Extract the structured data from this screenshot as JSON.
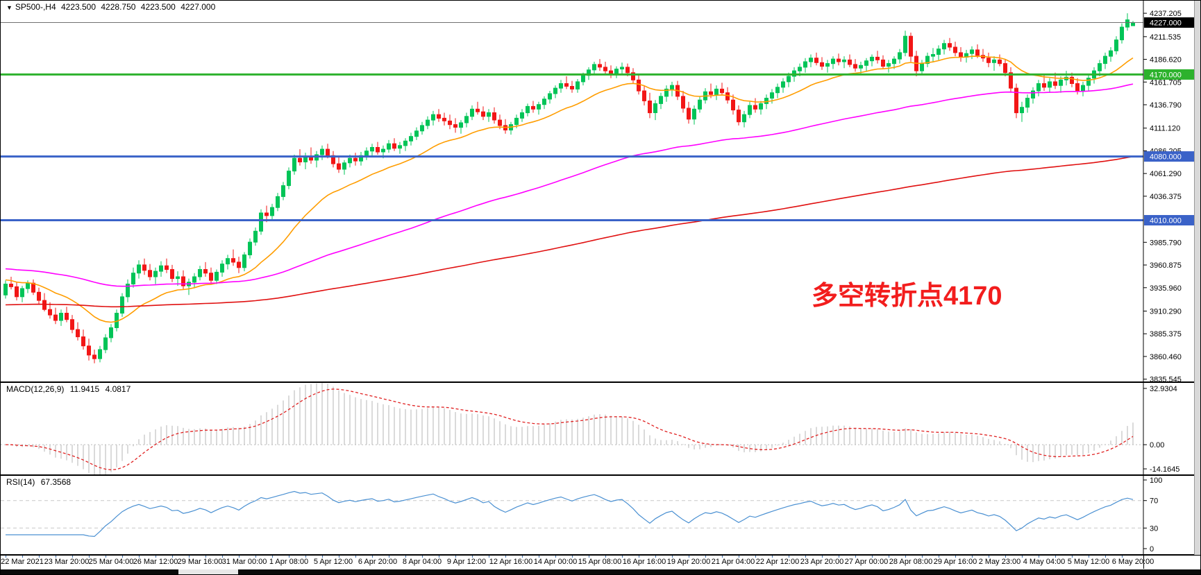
{
  "header": {
    "symbol_tf": "SP500-,H4",
    "open": "4223.500",
    "high": "4228.750",
    "low": "4223.500",
    "close": "4227.000",
    "collapse_icon": "triangle-down"
  },
  "annotation": {
    "text": "多空转折点4170",
    "color": "#f21d1d"
  },
  "colors": {
    "up": "#00c457",
    "down": "#f21616",
    "current_line": "#707070",
    "badge_current_bg": "#000000",
    "hline_green": "#2db22d",
    "hline_blue": "#3a62c8",
    "macd_hist": "#b4b4b4",
    "macd_signal": "#e02020",
    "rsi_line": "#4a90d2",
    "level_dash": "#c8c8c8"
  },
  "chart_data": {
    "type": "candlestick",
    "title": "SP500-,H4",
    "timeframe": "H4",
    "grid": false,
    "price_range": {
      "top": 4251,
      "bottom": 3833
    },
    "y_ticks": [
      "4237.205",
      "4211.535",
      "4186.620",
      "4161.705",
      "4136.790",
      "4111.120",
      "4086.205",
      "4061.290",
      "4036.375",
      "3985.790",
      "3960.875",
      "3935.960",
      "3910.290",
      "3885.375",
      "3860.460",
      "3835.545"
    ],
    "x_labels": [
      "22 Mar 2021",
      "23 Mar 20:00",
      "25 Mar 04:00",
      "26 Mar 12:00",
      "29 Mar 16:00",
      "31 Mar 00:00",
      "1 Apr 08:00",
      "5 Apr 12:00",
      "6 Apr 20:00",
      "8 Apr 04:00",
      "9 Apr 12:00",
      "12 Apr 16:00",
      "14 Apr 00:00",
      "15 Apr 08:00",
      "16 Apr 16:00",
      "19 Apr 20:00",
      "21 Apr 04:00",
      "22 Apr 12:00",
      "23 Apr 20:00",
      "27 Apr 00:00",
      "28 Apr 08:00",
      "29 Apr 16:00",
      "2 May 23:00",
      "4 May 04:00",
      "5 May 12:00",
      "6 May 20:00"
    ],
    "bars_per_label": 8,
    "first_label_bar": 3,
    "current_price": {
      "value": 4227.0,
      "label": "4227.000"
    },
    "hlines": [
      {
        "value": 4170,
        "label": "4170.000",
        "color": "#2db22d"
      },
      {
        "value": 4080,
        "label": "4080.000",
        "color": "#3a62c8"
      },
      {
        "value": 4010,
        "label": "4010.000",
        "color": "#3a62c8"
      }
    ],
    "moving_averages": [
      {
        "period": 20,
        "color": "#ff9d00",
        "seed": 3945
      },
      {
        "period": 100,
        "color": "#ff00ff",
        "seed": 3957
      },
      {
        "period": 280,
        "color": "#e01010",
        "seed": 3917
      }
    ],
    "macd": {
      "label": "MACD(12,26,9)",
      "value_main": "11.9415",
      "value_signal": "4.0817",
      "fast": 12,
      "slow": 26,
      "signal": 9,
      "axis_max": 32.9304,
      "axis_min": -14.1645,
      "axis_labels": [
        "32.9304",
        "0.00",
        "-14.1645"
      ]
    },
    "rsi": {
      "label": "RSI(14)",
      "value": "67.3568",
      "period": 14,
      "levels": [
        100,
        70,
        30,
        0
      ],
      "overbought": 70,
      "oversold": 30
    },
    "candles": [
      [
        3928,
        3944,
        3924,
        3940
      ],
      [
        3940,
        3948,
        3934,
        3937
      ],
      [
        3937,
        3942,
        3922,
        3926
      ],
      [
        3926,
        3938,
        3920,
        3935
      ],
      [
        3935,
        3944,
        3930,
        3941
      ],
      [
        3941,
        3945,
        3928,
        3931
      ],
      [
        3931,
        3936,
        3918,
        3922
      ],
      [
        3922,
        3930,
        3910,
        3912
      ],
      [
        3912,
        3920,
        3902,
        3906
      ],
      [
        3906,
        3914,
        3896,
        3900
      ],
      [
        3900,
        3912,
        3894,
        3908
      ],
      [
        3908,
        3915,
        3898,
        3901
      ],
      [
        3901,
        3906,
        3886,
        3890
      ],
      [
        3890,
        3898,
        3878,
        3882
      ],
      [
        3882,
        3890,
        3868,
        3872
      ],
      [
        3872,
        3880,
        3856,
        3862
      ],
      [
        3862,
        3868,
        3853,
        3858
      ],
      [
        3858,
        3872,
        3854,
        3868
      ],
      [
        3868,
        3885,
        3864,
        3881
      ],
      [
        3881,
        3896,
        3876,
        3892
      ],
      [
        3892,
        3912,
        3888,
        3908
      ],
      [
        3908,
        3930,
        3904,
        3926
      ],
      [
        3926,
        3945,
        3920,
        3940
      ],
      [
        3940,
        3958,
        3936,
        3952
      ],
      [
        3952,
        3966,
        3946,
        3961
      ],
      [
        3961,
        3968,
        3950,
        3955
      ],
      [
        3955,
        3962,
        3944,
        3948
      ],
      [
        3948,
        3958,
        3940,
        3954
      ],
      [
        3954,
        3965,
        3948,
        3960
      ],
      [
        3960,
        3968,
        3952,
        3956
      ],
      [
        3956,
        3961,
        3942,
        3946
      ],
      [
        3946,
        3954,
        3938,
        3948
      ],
      [
        3948,
        3955,
        3934,
        3938
      ],
      [
        3938,
        3946,
        3928,
        3942
      ],
      [
        3942,
        3952,
        3936,
        3948
      ],
      [
        3948,
        3960,
        3944,
        3956
      ],
      [
        3956,
        3964,
        3948,
        3952
      ],
      [
        3952,
        3958,
        3940,
        3944
      ],
      [
        3944,
        3956,
        3940,
        3953
      ],
      [
        3953,
        3966,
        3948,
        3962
      ],
      [
        3962,
        3972,
        3956,
        3968
      ],
      [
        3968,
        3978,
        3960,
        3964
      ],
      [
        3964,
        3970,
        3952,
        3958
      ],
      [
        3958,
        3975,
        3954,
        3972
      ],
      [
        3972,
        3990,
        3968,
        3986
      ],
      [
        3986,
        4002,
        3982,
        3998
      ],
      [
        3998,
        4022,
        3994,
        4018
      ],
      [
        4018,
        4026,
        4008,
        4015
      ],
      [
        4015,
        4028,
        4010,
        4024
      ],
      [
        4024,
        4040,
        4020,
        4036
      ],
      [
        4036,
        4052,
        4032,
        4048
      ],
      [
        4048,
        4068,
        4044,
        4064
      ],
      [
        4064,
        4082,
        4060,
        4078
      ],
      [
        4078,
        4088,
        4070,
        4074
      ],
      [
        4074,
        4084,
        4066,
        4080
      ],
      [
        4080,
        4090,
        4072,
        4076
      ],
      [
        4076,
        4086,
        4068,
        4082
      ],
      [
        4082,
        4092,
        4076,
        4088
      ],
      [
        4088,
        4094,
        4078,
        4081
      ],
      [
        4081,
        4086,
        4068,
        4072
      ],
      [
        4072,
        4080,
        4062,
        4066
      ],
      [
        4066,
        4076,
        4060,
        4073
      ],
      [
        4073,
        4082,
        4068,
        4078
      ],
      [
        4078,
        4084,
        4070,
        4075
      ],
      [
        4075,
        4085,
        4070,
        4081
      ],
      [
        4081,
        4090,
        4076,
        4086
      ],
      [
        4086,
        4094,
        4080,
        4090
      ],
      [
        4090,
        4096,
        4082,
        4085
      ],
      [
        4085,
        4092,
        4078,
        4088
      ],
      [
        4088,
        4098,
        4084,
        4094
      ],
      [
        4094,
        4100,
        4086,
        4089
      ],
      [
        4089,
        4096,
        4083,
        4092
      ],
      [
        4092,
        4100,
        4086,
        4097
      ],
      [
        4097,
        4106,
        4092,
        4102
      ],
      [
        4102,
        4112,
        4098,
        4108
      ],
      [
        4108,
        4118,
        4104,
        4114
      ],
      [
        4114,
        4124,
        4110,
        4120
      ],
      [
        4120,
        4130,
        4114,
        4126
      ],
      [
        4126,
        4132,
        4118,
        4122
      ],
      [
        4122,
        4128,
        4114,
        4119
      ],
      [
        4119,
        4126,
        4110,
        4115
      ],
      [
        4115,
        4122,
        4106,
        4112
      ],
      [
        4112,
        4120,
        4105,
        4117
      ],
      [
        4117,
        4128,
        4112,
        4124
      ],
      [
        4124,
        4136,
        4120,
        4132
      ],
      [
        4132,
        4140,
        4126,
        4129
      ],
      [
        4129,
        4135,
        4120,
        4124
      ],
      [
        4124,
        4132,
        4118,
        4128
      ],
      [
        4128,
        4134,
        4116,
        4120
      ],
      [
        4120,
        4126,
        4110,
        4114
      ],
      [
        4114,
        4121,
        4105,
        4109
      ],
      [
        4109,
        4118,
        4104,
        4115
      ],
      [
        4115,
        4126,
        4111,
        4122
      ],
      [
        4122,
        4132,
        4118,
        4128
      ],
      [
        4128,
        4138,
        4124,
        4135
      ],
      [
        4135,
        4141,
        4128,
        4132
      ],
      [
        4132,
        4140,
        4126,
        4137
      ],
      [
        4137,
        4146,
        4132,
        4143
      ],
      [
        4143,
        4152,
        4138,
        4149
      ],
      [
        4149,
        4158,
        4144,
        4155
      ],
      [
        4155,
        4164,
        4150,
        4160
      ],
      [
        4160,
        4168,
        4154,
        4157
      ],
      [
        4157,
        4163,
        4150,
        4154
      ],
      [
        4154,
        4165,
        4150,
        4162
      ],
      [
        4162,
        4172,
        4158,
        4169
      ],
      [
        4169,
        4178,
        4164,
        4175
      ],
      [
        4175,
        4184,
        4170,
        4181
      ],
      [
        4181,
        4187,
        4174,
        4178
      ],
      [
        4178,
        4184,
        4170,
        4174
      ],
      [
        4174,
        4180,
        4166,
        4171
      ],
      [
        4171,
        4179,
        4166,
        4176
      ],
      [
        4176,
        4183,
        4170,
        4178
      ],
      [
        4178,
        4182,
        4168,
        4172
      ],
      [
        4172,
        4177,
        4160,
        4164
      ],
      [
        4164,
        4170,
        4148,
        4152
      ],
      [
        4152,
        4158,
        4136,
        4141
      ],
      [
        4141,
        4150,
        4122,
        4128
      ],
      [
        4128,
        4142,
        4120,
        4138
      ],
      [
        4138,
        4150,
        4132,
        4146
      ],
      [
        4146,
        4158,
        4140,
        4154
      ],
      [
        4154,
        4162,
        4146,
        4158
      ],
      [
        4158,
        4163,
        4142,
        4146
      ],
      [
        4146,
        4152,
        4128,
        4133
      ],
      [
        4133,
        4140,
        4116,
        4121
      ],
      [
        4121,
        4136,
        4115,
        4132
      ],
      [
        4132,
        4146,
        4128,
        4142
      ],
      [
        4142,
        4155,
        4138,
        4151
      ],
      [
        4151,
        4160,
        4144,
        4148
      ],
      [
        4148,
        4158,
        4142,
        4154
      ],
      [
        4154,
        4161,
        4147,
        4150
      ],
      [
        4150,
        4156,
        4138,
        4142
      ],
      [
        4142,
        4148,
        4126,
        4131
      ],
      [
        4131,
        4136,
        4114,
        4118
      ],
      [
        4118,
        4130,
        4112,
        4126
      ],
      [
        4126,
        4140,
        4122,
        4136
      ],
      [
        4136,
        4144,
        4128,
        4132
      ],
      [
        4132,
        4141,
        4126,
        4138
      ],
      [
        4138,
        4148,
        4132,
        4144
      ],
      [
        4144,
        4154,
        4138,
        4150
      ],
      [
        4150,
        4160,
        4144,
        4156
      ],
      [
        4156,
        4166,
        4150,
        4162
      ],
      [
        4162,
        4172,
        4156,
        4168
      ],
      [
        4168,
        4178,
        4162,
        4174
      ],
      [
        4174,
        4182,
        4168,
        4178
      ],
      [
        4178,
        4188,
        4172,
        4184
      ],
      [
        4184,
        4192,
        4178,
        4188
      ],
      [
        4188,
        4194,
        4180,
        4183
      ],
      [
        4183,
        4189,
        4175,
        4179
      ],
      [
        4179,
        4186,
        4172,
        4182
      ],
      [
        4182,
        4190,
        4176,
        4187
      ],
      [
        4187,
        4193,
        4180,
        4184
      ],
      [
        4184,
        4190,
        4177,
        4186
      ],
      [
        4186,
        4192,
        4178,
        4181
      ],
      [
        4181,
        4187,
        4173,
        4177
      ],
      [
        4177,
        4184,
        4170,
        4180
      ],
      [
        4180,
        4188,
        4174,
        4185
      ],
      [
        4185,
        4192,
        4179,
        4189
      ],
      [
        4189,
        4196,
        4182,
        4186
      ],
      [
        4186,
        4191,
        4176,
        4179
      ],
      [
        4179,
        4186,
        4172,
        4182
      ],
      [
        4182,
        4190,
        4176,
        4187
      ],
      [
        4187,
        4198,
        4182,
        4194
      ],
      [
        4194,
        4218,
        4190,
        4212
      ],
      [
        4212,
        4216,
        4184,
        4190
      ],
      [
        4190,
        4196,
        4168,
        4174
      ],
      [
        4174,
        4186,
        4170,
        4182
      ],
      [
        4182,
        4194,
        4178,
        4190
      ],
      [
        4190,
        4199,
        4184,
        4192
      ],
      [
        4192,
        4202,
        4186,
        4198
      ],
      [
        4198,
        4208,
        4192,
        4204
      ],
      [
        4204,
        4210,
        4196,
        4200
      ],
      [
        4200,
        4206,
        4190,
        4194
      ],
      [
        4194,
        4200,
        4184,
        4189
      ],
      [
        4189,
        4197,
        4183,
        4193
      ],
      [
        4193,
        4201,
        4187,
        4197
      ],
      [
        4197,
        4203,
        4188,
        4191
      ],
      [
        4191,
        4198,
        4184,
        4188
      ],
      [
        4188,
        4194,
        4178,
        4183
      ],
      [
        4183,
        4190,
        4174,
        4186
      ],
      [
        4186,
        4192,
        4179,
        4182
      ],
      [
        4182,
        4187,
        4168,
        4172
      ],
      [
        4172,
        4178,
        4150,
        4155
      ],
      [
        4155,
        4160,
        4122,
        4128
      ],
      [
        4128,
        4140,
        4118,
        4134
      ],
      [
        4134,
        4148,
        4128,
        4144
      ],
      [
        4144,
        4156,
        4138,
        4152
      ],
      [
        4152,
        4164,
        4146,
        4160
      ],
      [
        4160,
        4170,
        4152,
        4156
      ],
      [
        4156,
        4166,
        4150,
        4162
      ],
      [
        4162,
        4172,
        4154,
        4158
      ],
      [
        4158,
        4168,
        4150,
        4164
      ],
      [
        4164,
        4174,
        4158,
        4167
      ],
      [
        4167,
        4172,
        4156,
        4160
      ],
      [
        4160,
        4166,
        4148,
        4152
      ],
      [
        4152,
        4162,
        4146,
        4158
      ],
      [
        4158,
        4170,
        4152,
        4166
      ],
      [
        4166,
        4178,
        4160,
        4174
      ],
      [
        4174,
        4186,
        4168,
        4182
      ],
      [
        4182,
        4194,
        4176,
        4190
      ],
      [
        4190,
        4200,
        4184,
        4196
      ],
      [
        4196,
        4212,
        4192,
        4208
      ],
      [
        4208,
        4226,
        4204,
        4222
      ],
      [
        4222,
        4237.2,
        4218,
        4230
      ],
      [
        4223.5,
        4228.75,
        4223.5,
        4227
      ]
    ]
  }
}
